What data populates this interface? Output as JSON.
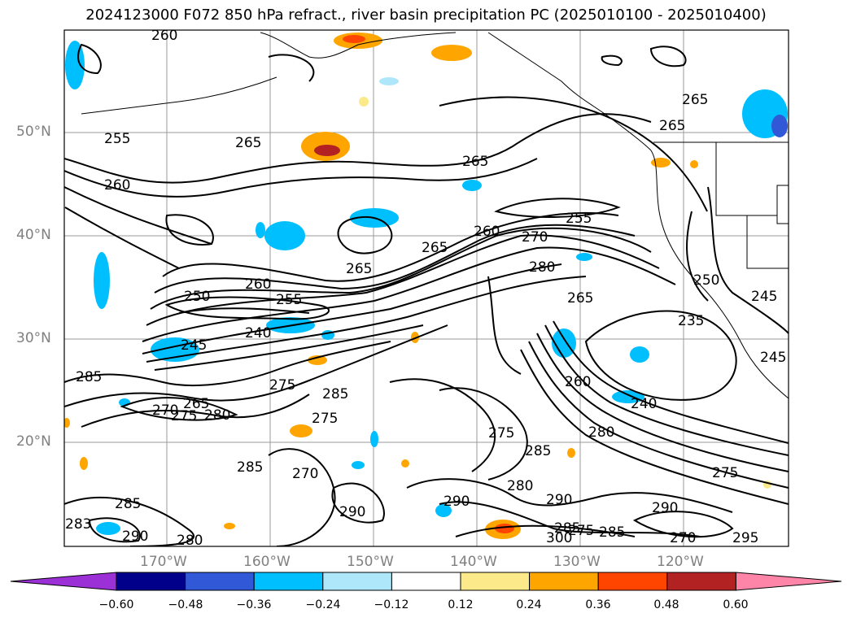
{
  "title": "2024123000 F072 850 hPa refract., river basin precipitation PC (2025010100 - 2025010400)",
  "lat_labels": [
    "50°N",
    "40°N",
    "30°N",
    "20°N"
  ],
  "lon_labels": [
    "170°W",
    "160°W",
    "150°W",
    "140°W",
    "130°W",
    "120°W"
  ],
  "contour_labels": [
    "260",
    "265",
    "255",
    "260",
    "265",
    "265",
    "265",
    "260",
    "255",
    "270",
    "265",
    "280",
    "250",
    "255",
    "260",
    "250",
    "240",
    "245",
    "265",
    "245",
    "285",
    "275",
    "265",
    "270",
    "275",
    "280",
    "285",
    "275",
    "285",
    "270",
    "275",
    "260",
    "240",
    "280",
    "285",
    "275",
    "280",
    "290",
    "290",
    "290",
    "300",
    "285",
    "285",
    "290",
    "270",
    "295",
    "275",
    "235",
    "245",
    "265",
    "285",
    "290",
    "280",
    "283"
  ],
  "colorbar": {
    "colors": [
      "#9b30d6",
      "#00008b",
      "#3158d6",
      "#00bfff",
      "#aee6fa",
      "#ffffff",
      "#fce98a",
      "#ffa500",
      "#ff4500",
      "#b22222",
      "#ff85a8"
    ],
    "ticks": [
      "−0.60",
      "−0.48",
      "−0.36",
      "−0.24",
      "−0.12",
      "0.12",
      "0.24",
      "0.36",
      "0.48",
      "0.60"
    ]
  }
}
